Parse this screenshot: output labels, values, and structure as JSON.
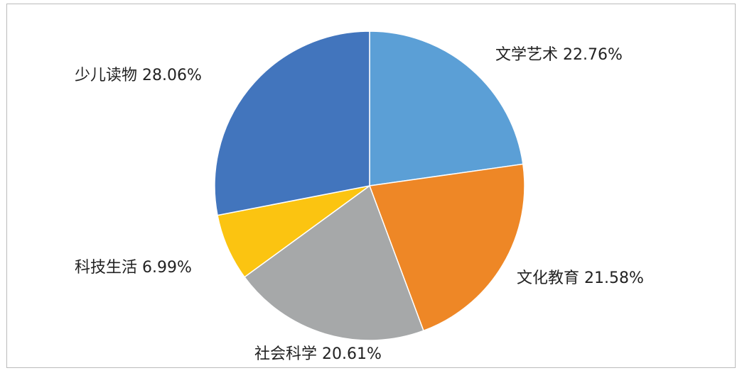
{
  "chart_data": {
    "type": "pie",
    "categories": [
      "文学艺术",
      "文化教育",
      "社会科学",
      "科技生活",
      "少儿读物"
    ],
    "values": [
      22.76,
      21.58,
      20.61,
      6.99,
      28.06
    ],
    "value_labels": [
      "22.76%",
      "21.58%",
      "20.61%",
      "6.99%",
      "28.06%"
    ],
    "colors": [
      "#5b9fd6",
      "#ee8726",
      "#a6a8a9",
      "#fbc411",
      "#4275bd"
    ]
  }
}
